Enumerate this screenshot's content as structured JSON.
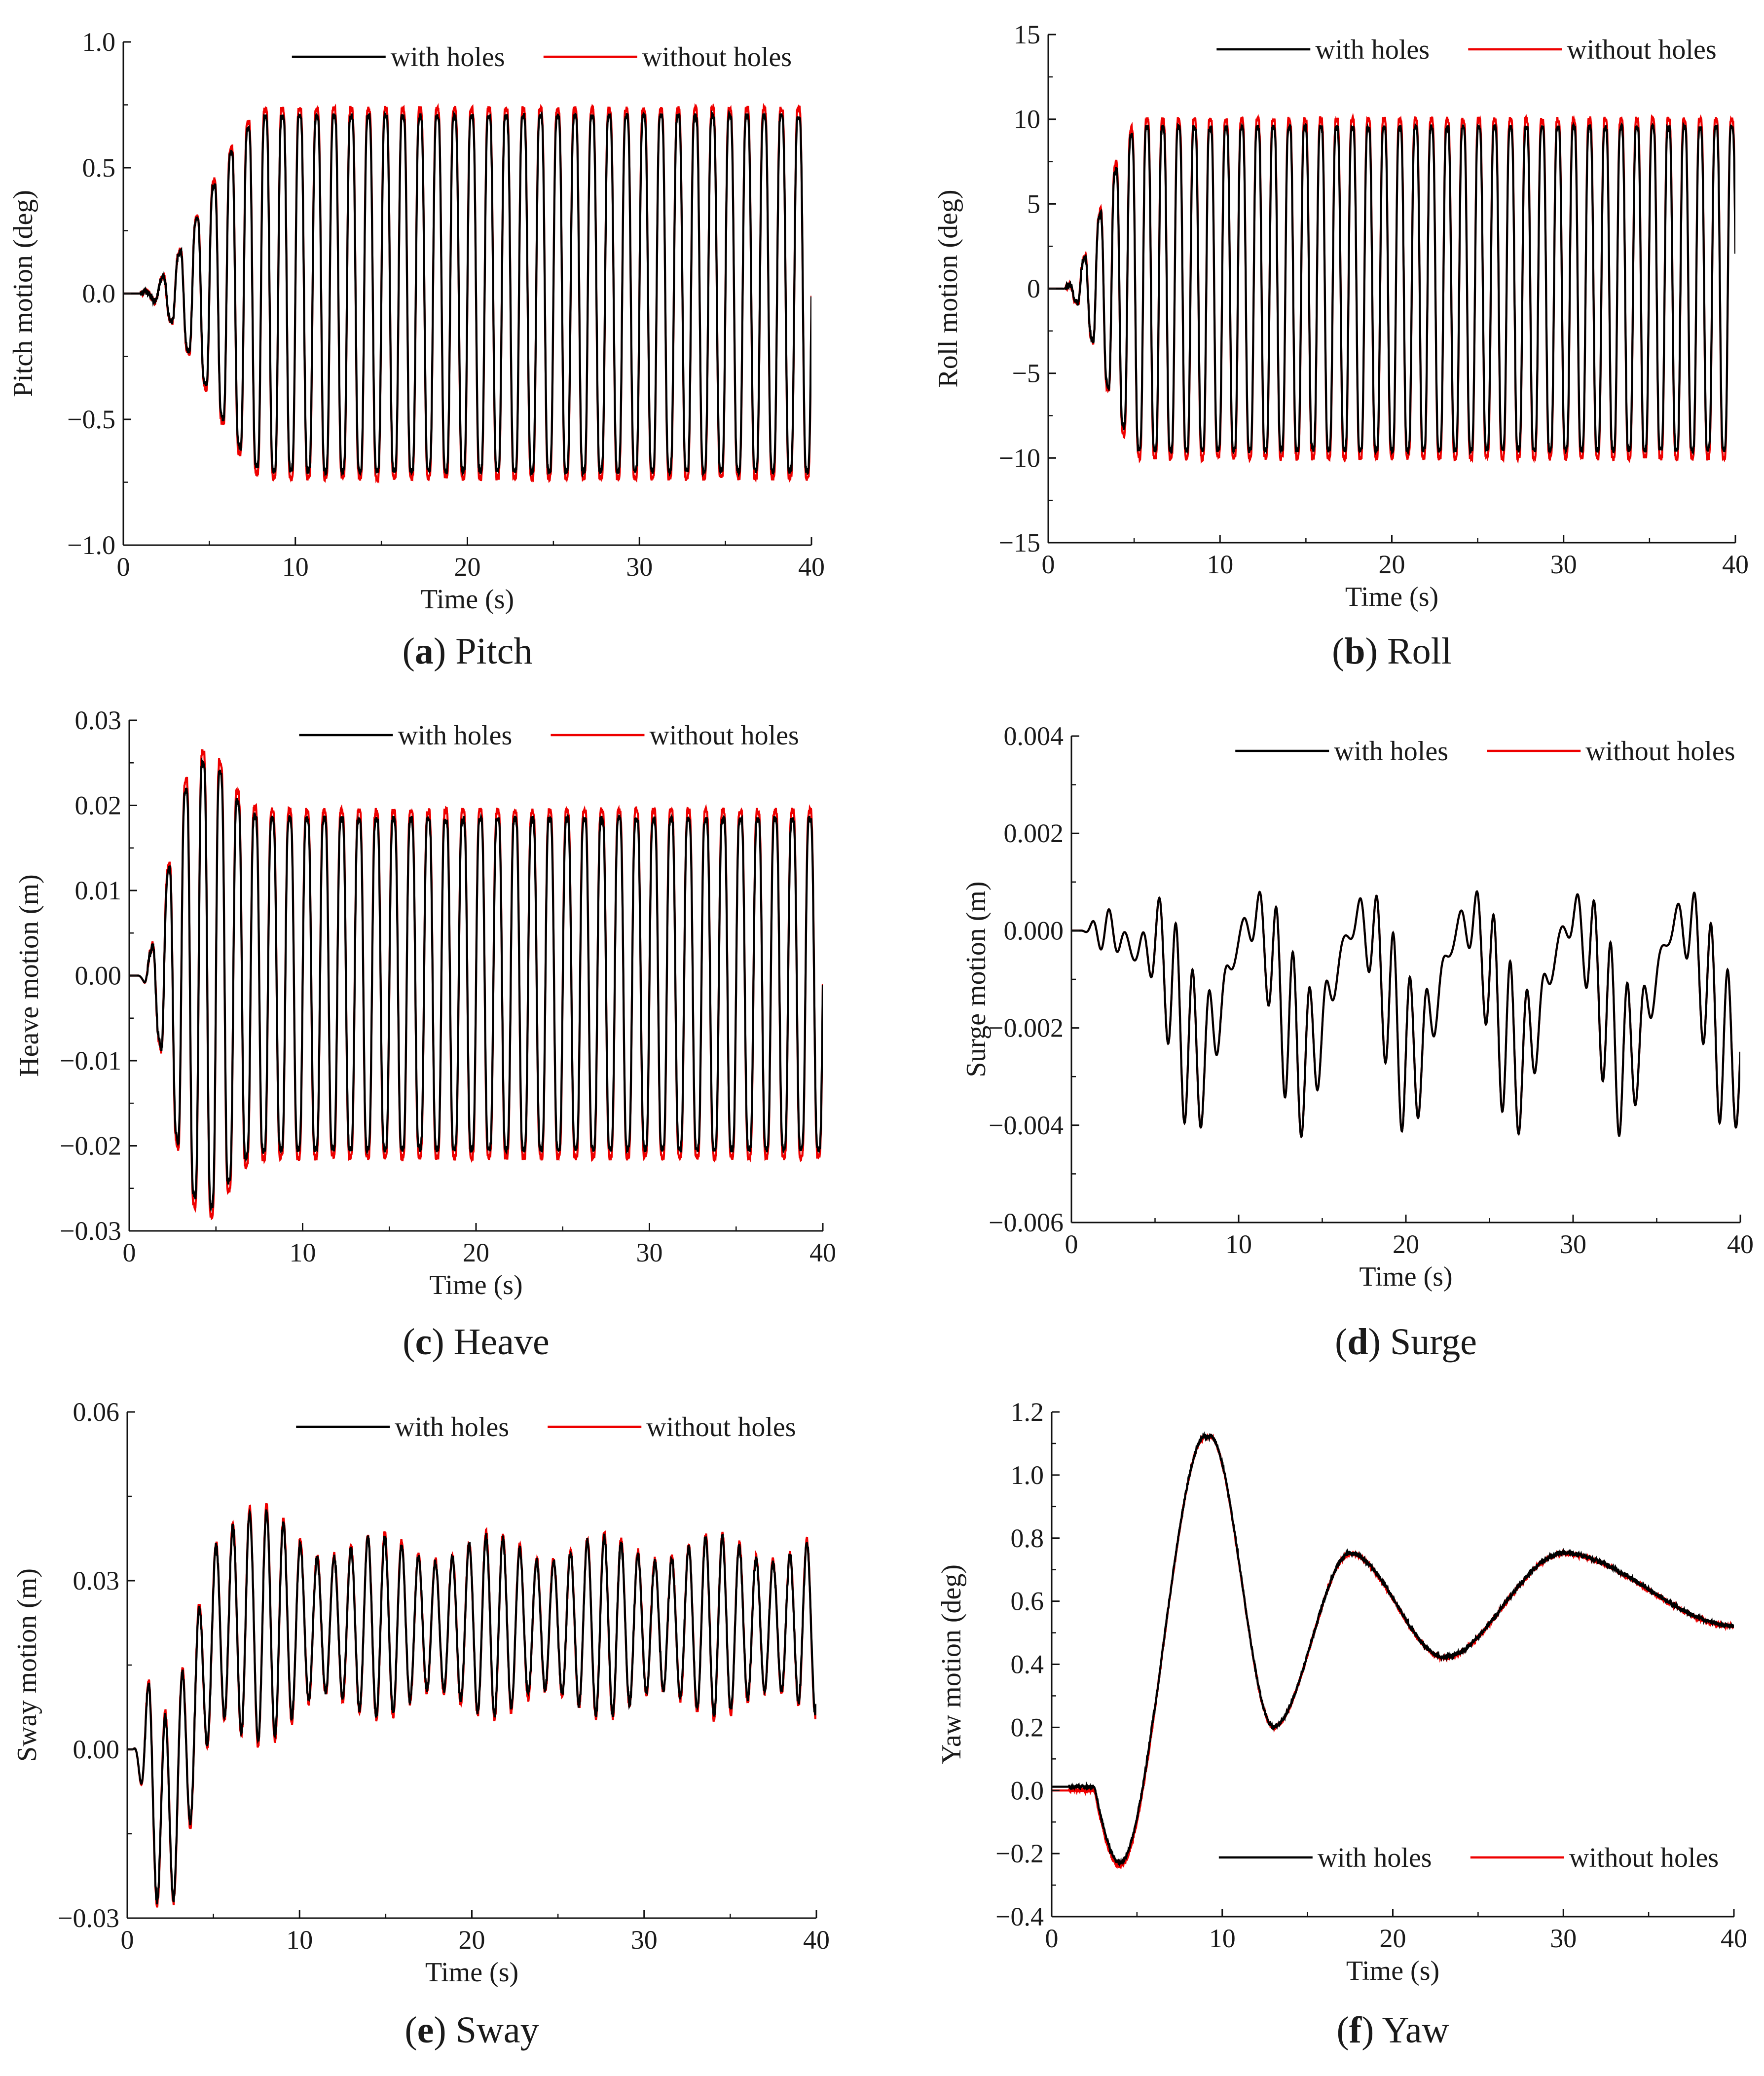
{
  "legend": {
    "with_label": "with holes",
    "without_label": "without holes"
  },
  "colors": {
    "with": "#000000",
    "without": "#ee0000"
  },
  "chart_data": [
    {
      "id": "a",
      "type": "line",
      "caption_letter": "a",
      "caption_text": "Pitch",
      "xlabel": "Time (s)",
      "ylabel": "Pitch motion (deg)",
      "xlim": [
        0,
        40
      ],
      "ylim": [
        -1.0,
        1.0
      ],
      "xticks": [
        "0",
        "10",
        "20",
        "30",
        "40"
      ],
      "yticks": [
        "1.0",
        "0.5",
        "0.0",
        "−0.5",
        "−1.0"
      ],
      "legend_position": "top-right",
      "signal": {
        "kind": "osc",
        "period": 1.0,
        "amplitude": 0.8,
        "ramp_start": 0.9,
        "ramp_end": 8.5,
        "offset": 0.0,
        "drift": "none",
        "noise": 0.025,
        "without_scale": 1.04
      },
      "series": [
        {
          "name": "with holes",
          "color": "#000000"
        },
        {
          "name": "without holes",
          "color": "#ee0000"
        }
      ]
    },
    {
      "id": "b",
      "type": "line",
      "caption_letter": "b",
      "caption_text": "Roll",
      "xlabel": "Time (s)",
      "ylabel": "Roll motion (deg)",
      "xlim": [
        0,
        40
      ],
      "ylim": [
        -15,
        15
      ],
      "xticks": [
        "0",
        "10",
        "20",
        "30",
        "40"
      ],
      "yticks": [
        "15",
        "10",
        "5",
        "0",
        "−5",
        "−10",
        "−15"
      ],
      "legend_position": "top-right",
      "signal": {
        "kind": "osc",
        "period": 0.92,
        "amplitude": 10.8,
        "ramp_start": 0.8,
        "ramp_end": 5.5,
        "offset": 0.0,
        "drift": "none",
        "noise": 0.35,
        "without_scale": 1.05
      },
      "series": [
        {
          "name": "with holes",
          "color": "#000000"
        },
        {
          "name": "without holes",
          "color": "#ee0000"
        }
      ]
    },
    {
      "id": "c",
      "type": "line",
      "caption_letter": "c",
      "caption_text": "Heave",
      "xlabel": "Time (s)",
      "ylabel": "Heave motion (m)",
      "xlim": [
        0,
        40
      ],
      "ylim": [
        -0.03,
        0.03
      ],
      "xticks": [
        "0",
        "10",
        "20",
        "30",
        "40"
      ],
      "yticks": [
        "0.03",
        "0.02",
        "0.01",
        "0.00",
        "−0.01",
        "−0.02",
        "−0.03"
      ],
      "legend_position": "top-right",
      "signal": {
        "kind": "osc",
        "period": 1.0,
        "amplitude": 0.022,
        "ramp_start": 0.5,
        "ramp_end": 3.5,
        "offset": 0.0,
        "drift": "heave",
        "noise": 0.0008,
        "without_scale": 1.05
      },
      "series": [
        {
          "name": "with holes",
          "color": "#000000"
        },
        {
          "name": "without holes",
          "color": "#ee0000"
        }
      ]
    },
    {
      "id": "d",
      "type": "line",
      "caption_letter": "d",
      "caption_text": "Surge",
      "xlabel": "Time (s)",
      "ylabel": "Surge motion (m)",
      "xlim": [
        0,
        40
      ],
      "ylim": [
        -0.006,
        0.004
      ],
      "xticks": [
        "0",
        "10",
        "20",
        "30",
        "40"
      ],
      "yticks": [
        "0.004",
        "0.002",
        "0.000",
        "−0.002",
        "−0.004",
        "−0.006"
      ],
      "legend_position": "top-right",
      "signal": {
        "kind": "surge",
        "noise": 0.0
      },
      "series": [
        {
          "name": "with holes",
          "color": "#000000"
        },
        {
          "name": "without holes",
          "color": "#ee0000"
        }
      ]
    },
    {
      "id": "e",
      "type": "line",
      "caption_letter": "e",
      "caption_text": "Sway",
      "xlabel": "Time (s)",
      "ylabel": "Sway motion (m)",
      "xlim": [
        0,
        40
      ],
      "ylim": [
        -0.03,
        0.06
      ],
      "xticks": [
        "0",
        "10",
        "20",
        "30",
        "40"
      ],
      "yticks": [
        "0.06",
        "0.03",
        "0.00",
        "−0.03"
      ],
      "legend_position": "top-right",
      "signal": {
        "kind": "sway",
        "noise": 0.0012
      },
      "series": [
        {
          "name": "with holes",
          "color": "#000000"
        },
        {
          "name": "without holes",
          "color": "#ee0000"
        }
      ]
    },
    {
      "id": "f",
      "type": "line",
      "caption_letter": "f",
      "caption_text": "Yaw",
      "xlabel": "Time (s)",
      "ylabel": "Yaw motion (deg)",
      "xlim": [
        0,
        40
      ],
      "ylim": [
        -0.4,
        1.2
      ],
      "xticks": [
        "0",
        "10",
        "20",
        "30",
        "40"
      ],
      "yticks": [
        "1.2",
        "1.0",
        "0.8",
        "0.6",
        "0.4",
        "0.2",
        "0.0",
        "−0.2",
        "−0.4"
      ],
      "legend_position": "bottom-right",
      "signal": {
        "kind": "yaw",
        "noise": 0.012
      },
      "series": [
        {
          "name": "with holes",
          "color": "#000000"
        },
        {
          "name": "without holes",
          "color": "#ee0000"
        }
      ]
    }
  ]
}
